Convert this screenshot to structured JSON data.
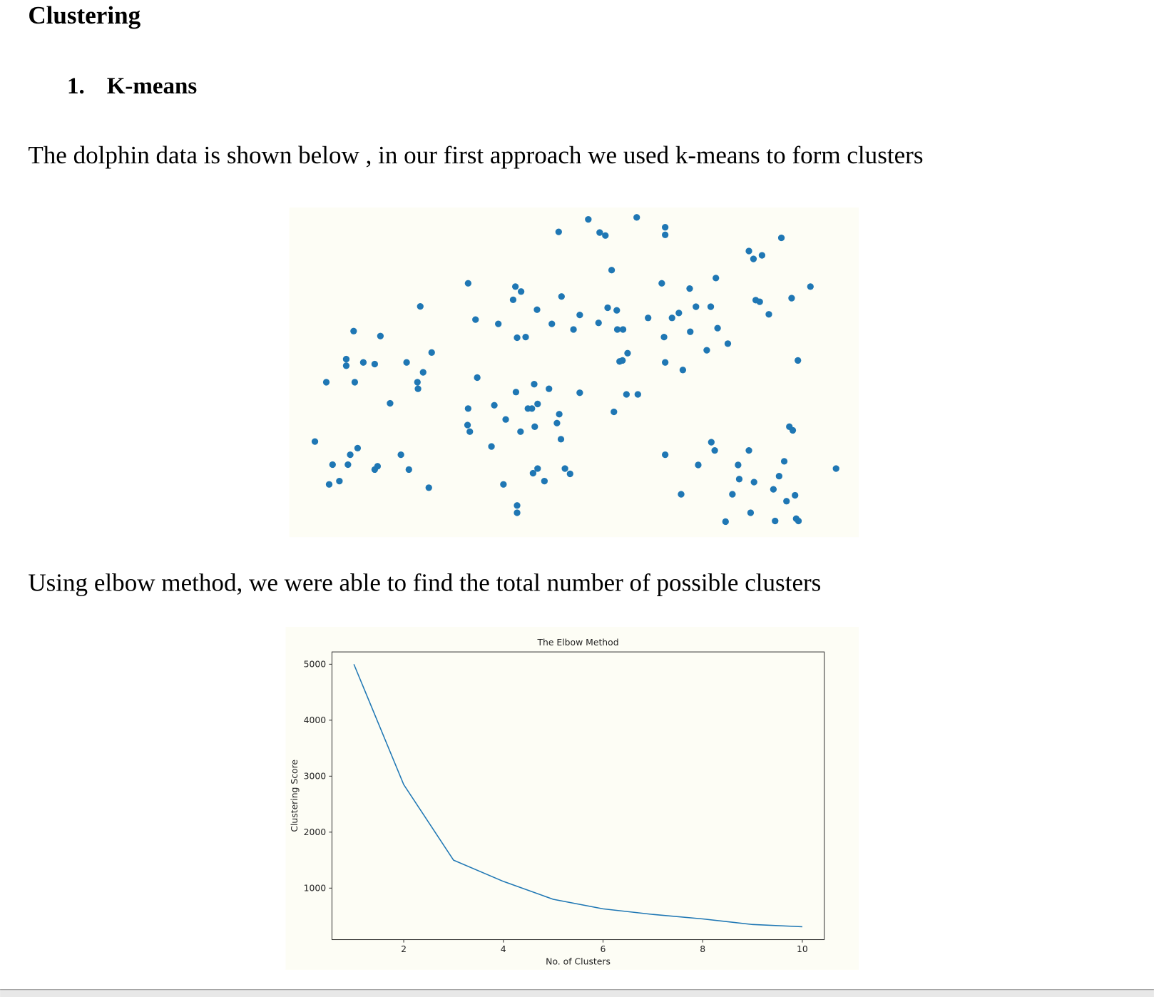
{
  "heading": "Clustering",
  "list_item": {
    "number": "1.",
    "text": "K-means"
  },
  "paragraphs": [
    "The dolphin data is shown below , in our first approach we used k-means to form clusters",
    "Using elbow method, we were able to find the total number of possible clusters"
  ],
  "chart_data": [
    {
      "type": "scatter",
      "color": "#1f77b4",
      "xlim": [
        0,
        100
      ],
      "ylim": [
        0,
        100
      ],
      "x": [
        4.5,
        6.5,
        7,
        8.8,
        7.6,
        10.3,
        10.7,
        12,
        10,
        10,
        11.3,
        11.5,
        13,
        15,
        16,
        15,
        15.5,
        17.7,
        19.6,
        20.6,
        21,
        22.5,
        22.6,
        23,
        23.5,
        24.5,
        25,
        31.4,
        31.4,
        31.3,
        31.7,
        32.7,
        33,
        35.5,
        36,
        36.7,
        37.6,
        38,
        39.3,
        39.7,
        39.8,
        40,
        40,
        40,
        40.6,
        40.7,
        41.5,
        41.9,
        42.6,
        42.8,
        43,
        43.1,
        43.5,
        43.6,
        43.6,
        44.8,
        45.6,
        46.1,
        47,
        47.3,
        47.4,
        47.7,
        47.8,
        48.4,
        49.3,
        49.9,
        51,
        51,
        52.5,
        54.3,
        54.5,
        55.5,
        55.9,
        56.6,
        57,
        57.5,
        57.6,
        58,
        58.5,
        58.6,
        59.4,
        59.2,
        61,
        61.2,
        63,
        65.4,
        65.8,
        66,
        66,
        66,
        66,
        67.2,
        68.4,
        68.8,
        69.1,
        70.3,
        70.4,
        71.4,
        71.8,
        73.3,
        74,
        74.1,
        74.7,
        74.9,
        75.2,
        76.6,
        77,
        77.8,
        78.8,
        79,
        80.7,
        80.7,
        81,
        81.5,
        81.6,
        81.9,
        82.6,
        83,
        84.2,
        85,
        85.3,
        86,
        86.4,
        86.9,
        87.3,
        87.8,
        88.2,
        88.4,
        88.8,
        89,
        89.4,
        89.3,
        91.5,
        96
      ],
      "y": [
        29,
        47,
        16,
        17,
        22,
        22,
        25,
        27,
        54,
        52,
        62.5,
        47,
        53,
        52.5,
        61,
        20.5,
        21.5,
        40.6,
        25,
        53,
        20.5,
        47,
        45,
        70,
        50,
        15,
        56,
        77,
        39,
        34,
        32,
        66,
        48.4,
        27.5,
        40,
        64.7,
        16,
        35.7,
        72,
        76,
        44,
        9.6,
        7.4,
        60.5,
        32,
        74.5,
        60.7,
        39,
        39,
        19.4,
        46.4,
        33.5,
        69,
        40.4,
        20.8,
        17,
        45,
        64.7,
        34.6,
        92.6,
        37.3,
        29.7,
        73,
        20.8,
        19.2,
        63,
        67.4,
        43.8,
        96.4,
        65,
        92.4,
        91.5,
        69.6,
        81,
        38,
        68.8,
        63,
        53.3,
        53.6,
        63,
        55.8,
        43.3,
        97,
        43.3,
        66.5,
        77,
        60.7,
        94,
        91.7,
        53,
        25,
        66.5,
        68,
        13,
        50.7,
        75.4,
        62.3,
        69.9,
        21.9,
        56.7,
        69.9,
        28.8,
        26.3,
        78.6,
        63.4,
        4.7,
        58.7,
        13,
        21.9,
        17.6,
        86.8,
        26.3,
        7.4,
        84.4,
        16.7,
        71.9,
        71.4,
        85.5,
        67.6,
        14.5,
        4.9,
        18.5,
        90.8,
        23,
        10.9,
        33.5,
        72.5,
        32.4,
        12.7,
        5.6,
        4.9,
        53.6,
        76,
        20.8
      ]
    },
    {
      "type": "line",
      "title": "The Elbow Method",
      "xlabel": "No. of Clusters",
      "ylabel": "Clustering Score",
      "color": "#1f77b4",
      "x": [
        1,
        2,
        3,
        4,
        5,
        6,
        7,
        8,
        9,
        10
      ],
      "values": [
        5000,
        2850,
        1500,
        1120,
        800,
        630,
        530,
        450,
        350,
        310
      ],
      "xlim": [
        0.56,
        10.44
      ],
      "ylim": [
        80,
        5220
      ],
      "xticks": [
        2,
        4,
        6,
        8,
        10
      ],
      "yticks": [
        1000,
        2000,
        3000,
        4000,
        5000
      ]
    }
  ]
}
